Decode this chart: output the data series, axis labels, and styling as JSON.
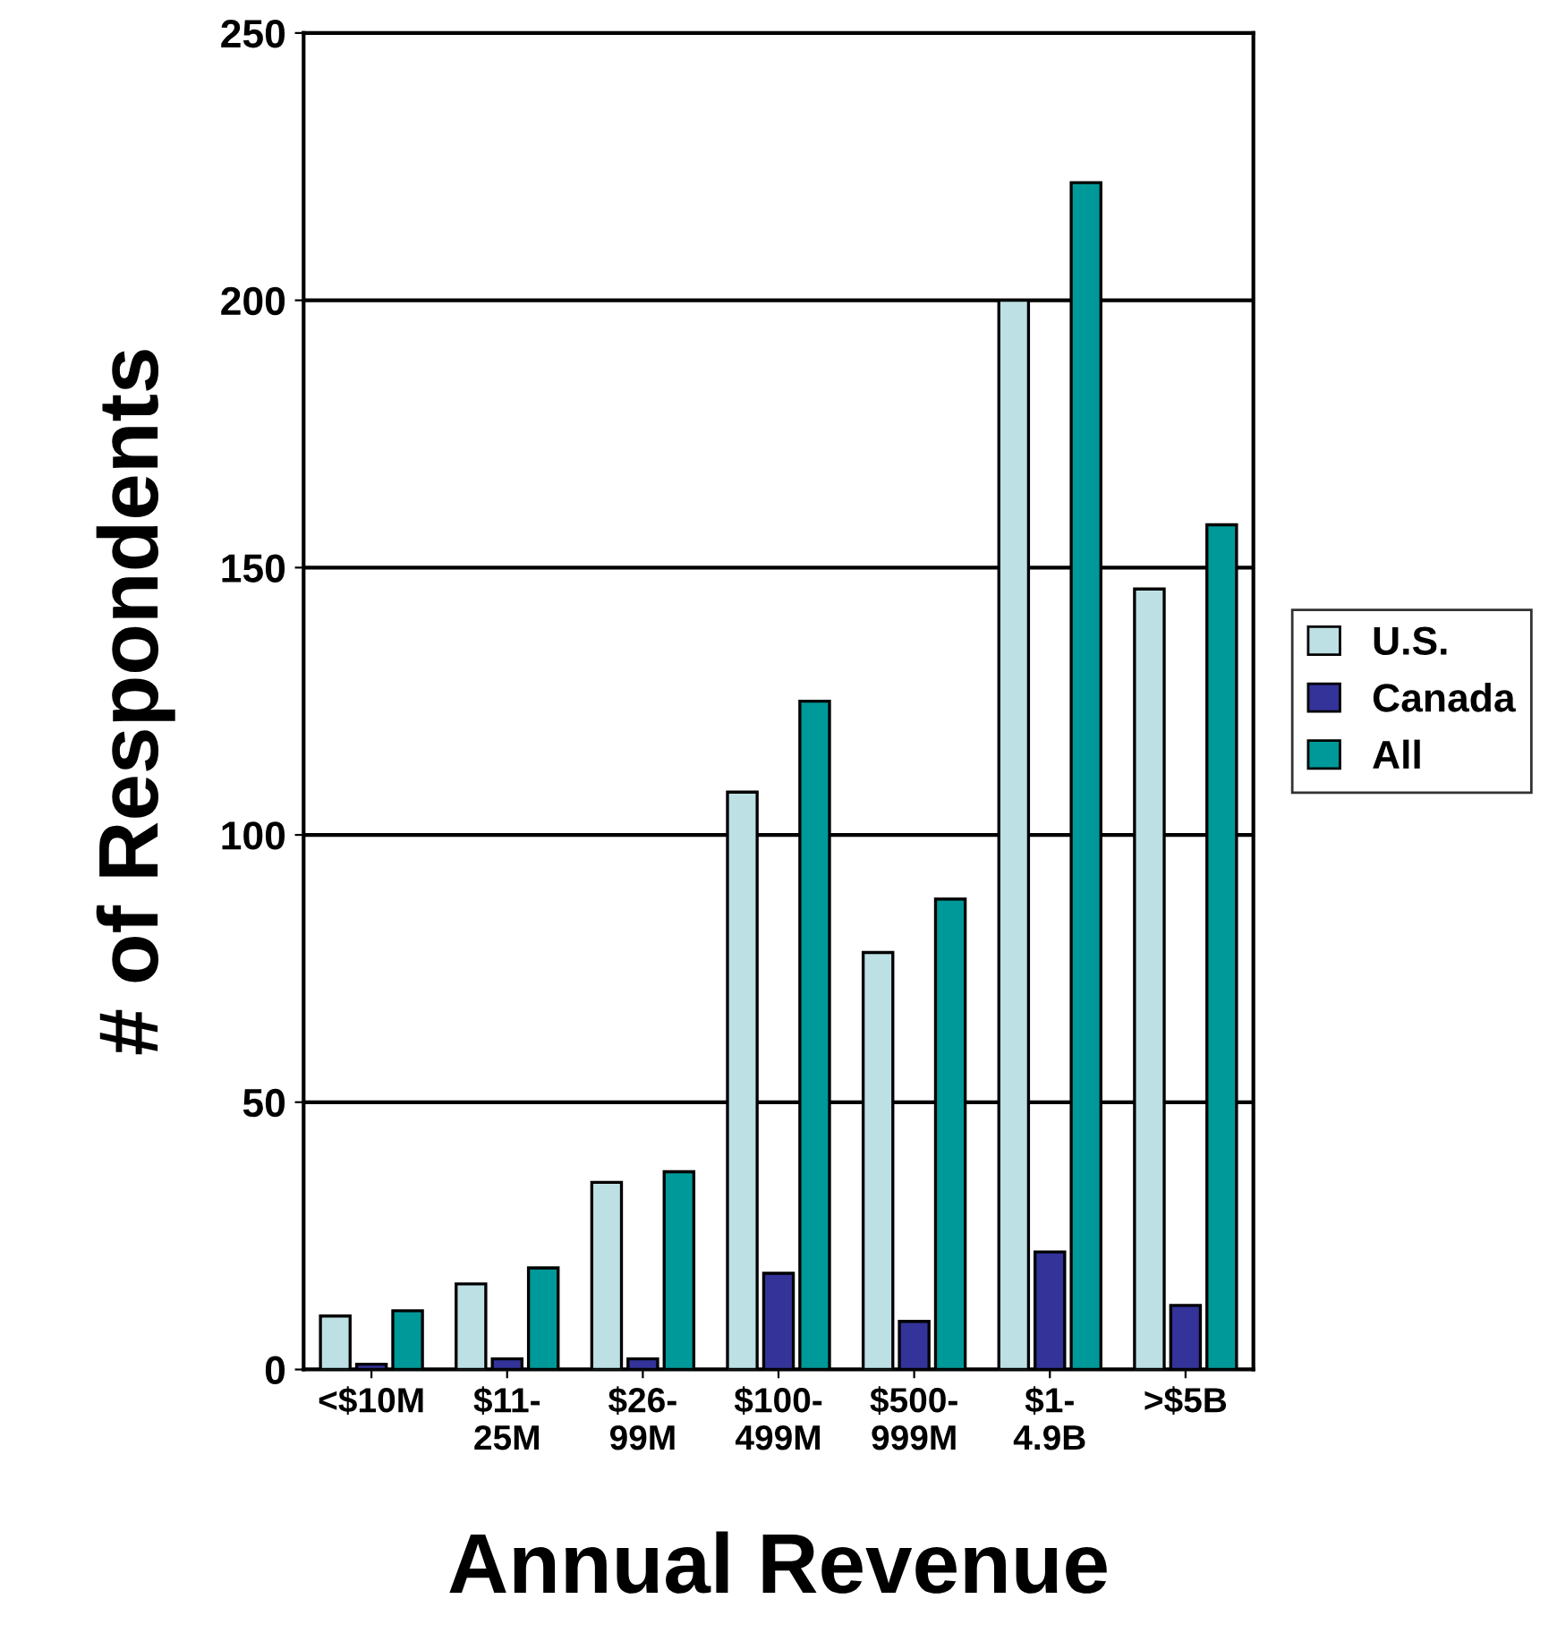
{
  "chart_data": {
    "type": "bar",
    "xlabel": "Annual Revenue",
    "ylabel": "# of Respondents",
    "categories": [
      "<$10M",
      "$11-\n25M",
      "$26-\n99M",
      "$100-\n499M",
      "$500-\n999M",
      "$1-\n4.9B",
      ">$5B"
    ],
    "series": [
      {
        "name": "U.S.",
        "color": "#bde0e4",
        "values": [
          10,
          16,
          35,
          108,
          78,
          200,
          146
        ]
      },
      {
        "name": "Canada",
        "color": "#333399",
        "values": [
          1,
          2,
          2,
          18,
          9,
          22,
          12
        ]
      },
      {
        "name": "All",
        "color": "#009999",
        "values": [
          11,
          19,
          37,
          125,
          88,
          222,
          158
        ]
      }
    ],
    "ylim": [
      0,
      250
    ],
    "yticks": [
      0,
      50,
      100,
      150,
      200,
      250
    ],
    "grid": "y",
    "legend": "right"
  }
}
